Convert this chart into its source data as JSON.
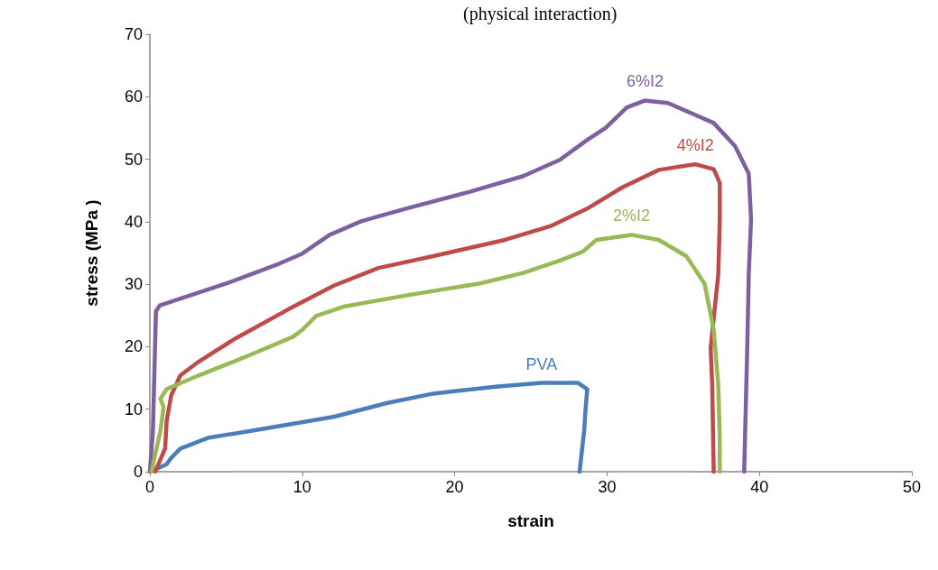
{
  "chart_data": {
    "type": "line",
    "title": "(physical interaction)",
    "xlabel": "strain",
    "ylabel": "stress (MPa )",
    "xlim": [
      0,
      50
    ],
    "xticks": [
      0,
      10,
      20,
      30,
      40,
      50
    ],
    "ylim": [
      0,
      70
    ],
    "yticks": [
      0,
      10,
      20,
      30,
      40,
      50,
      60,
      70
    ],
    "grid": false,
    "legend": false,
    "marker": "none",
    "line_style": "solid",
    "series": [
      {
        "name": "PVA",
        "color": "#4a7ebb",
        "x": [
          0.05,
          1.1,
          1.4,
          2,
          3.8,
          6.8,
          9.7,
          12.1,
          15.6,
          18.6,
          22.7,
          25.7,
          28.1,
          28.7,
          28.6,
          28.5,
          28.2
        ],
        "values": [
          0,
          1.2,
          2.2,
          3.7,
          5.4,
          6.6,
          7.8,
          8.8,
          11,
          12.5,
          13.6,
          14.2,
          14.2,
          13.2,
          10.3,
          6.6,
          0
        ]
      },
      {
        "name": "6%I2",
        "color": "#7d60a0",
        "x": [
          0,
          0.2,
          0.4,
          0.65,
          5,
          8.5,
          10,
          11.8,
          13.9,
          16.8,
          21,
          24.5,
          26.9,
          28.7,
          29.9,
          31.3,
          32.5,
          34,
          37,
          38.4,
          39.3,
          39.45,
          39.3,
          39.2,
          39
        ],
        "values": [
          0,
          6.6,
          25.7,
          26.6,
          30.1,
          33.3,
          34.9,
          37.9,
          40.1,
          42.1,
          44.8,
          47.3,
          49.9,
          53.1,
          55,
          58.3,
          59.4,
          59,
          55.8,
          52.1,
          47.7,
          40.4,
          31.6,
          19.8,
          0
        ]
      },
      {
        "name": "4%I2",
        "color": "#be4b48",
        "x": [
          0.35,
          1,
          1.1,
          1.4,
          2,
          3.2,
          5.6,
          9.1,
          12.1,
          15,
          18.6,
          23.3,
          26.3,
          28.7,
          31,
          33.4,
          35.8,
          37,
          37.4,
          37.4,
          37.3,
          36.8,
          36.9,
          37
        ],
        "values": [
          0,
          3.7,
          8.1,
          12.2,
          15.4,
          17.6,
          21.3,
          26,
          29.8,
          32.6,
          34.5,
          37.1,
          39.3,
          42.1,
          45.5,
          48.3,
          49.2,
          48.4,
          46.2,
          40.4,
          31.6,
          19.8,
          13.9,
          0
        ]
      },
      {
        "name": "2%I2",
        "color": "#98b954",
        "x": [
          0.1,
          0.7,
          0.9,
          0.7,
          1.1,
          3.2,
          6.2,
          9.4,
          10,
          10.9,
          12.7,
          16.8,
          21.6,
          24.5,
          26.9,
          28.4,
          29.3,
          31.6,
          33.4,
          35.2,
          36.4,
          37,
          37.3,
          37.4,
          37.4
        ],
        "values": [
          0,
          6.6,
          10.3,
          11.7,
          13.2,
          15.4,
          18.3,
          21.6,
          22.7,
          24.9,
          26.4,
          28.2,
          30.1,
          31.8,
          33.8,
          35.2,
          37.1,
          37.9,
          37.1,
          34.5,
          30.1,
          22.7,
          13.9,
          5.1,
          0
        ]
      }
    ]
  }
}
